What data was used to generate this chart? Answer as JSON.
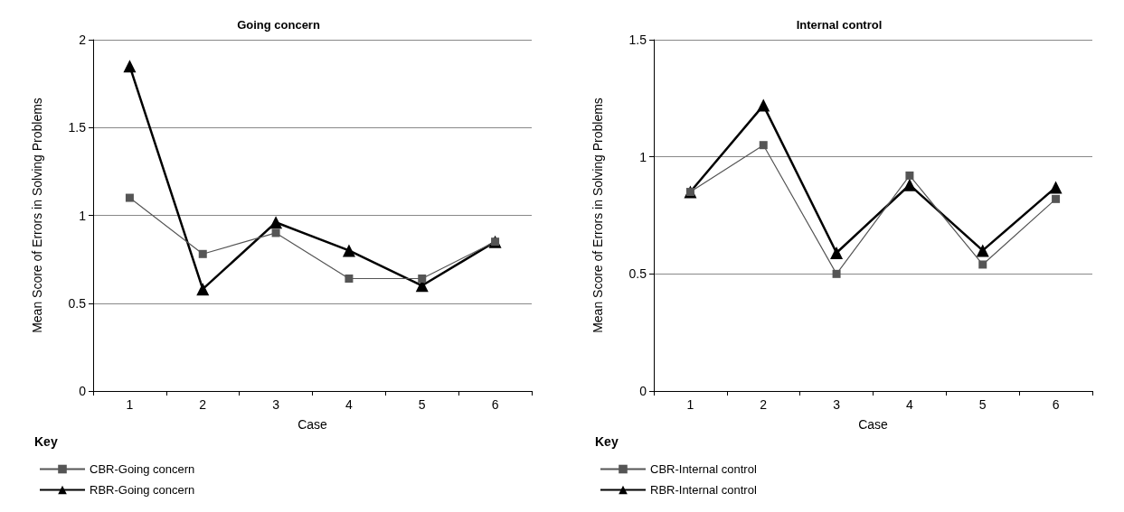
{
  "chart_data": [
    {
      "type": "line",
      "title": "Going concern",
      "xlabel": "Case",
      "ylabel": "Mean Score of Errors in Solving Problems",
      "legend_title": "Key",
      "categories": [
        "1",
        "2",
        "3",
        "4",
        "5",
        "6"
      ],
      "series": [
        {
          "name": "CBR-Going concern",
          "color": "#555555",
          "marker": "square",
          "values": [
            1.1,
            0.78,
            0.9,
            0.64,
            0.64,
            0.85
          ]
        },
        {
          "name": "RBR-Going concern",
          "color": "#000000",
          "marker": "triangle",
          "values": [
            1.85,
            0.58,
            0.96,
            0.8,
            0.6,
            0.85
          ]
        }
      ],
      "ylim": [
        0,
        2
      ],
      "yticks": [
        0,
        0.5,
        1,
        1.5,
        2
      ],
      "grid": "y",
      "legend": "bottom left"
    },
    {
      "type": "line",
      "title": "Internal control",
      "xlabel": "Case",
      "ylabel": "Mean Score of Errors in Solving Problems",
      "legend_title": "Key",
      "categories": [
        "1",
        "2",
        "3",
        "4",
        "5",
        "6"
      ],
      "series": [
        {
          "name": "CBR-Internal control",
          "color": "#555555",
          "marker": "square",
          "values": [
            0.85,
            1.05,
            0.5,
            0.92,
            0.54,
            0.82
          ]
        },
        {
          "name": "RBR-Internal control",
          "color": "#000000",
          "marker": "triangle",
          "values": [
            0.85,
            1.22,
            0.59,
            0.88,
            0.6,
            0.87
          ]
        }
      ],
      "ylim": [
        0,
        1.5
      ],
      "yticks": [
        0,
        0.5,
        1,
        1.5
      ],
      "grid": "y",
      "legend": "bottom left"
    }
  ]
}
